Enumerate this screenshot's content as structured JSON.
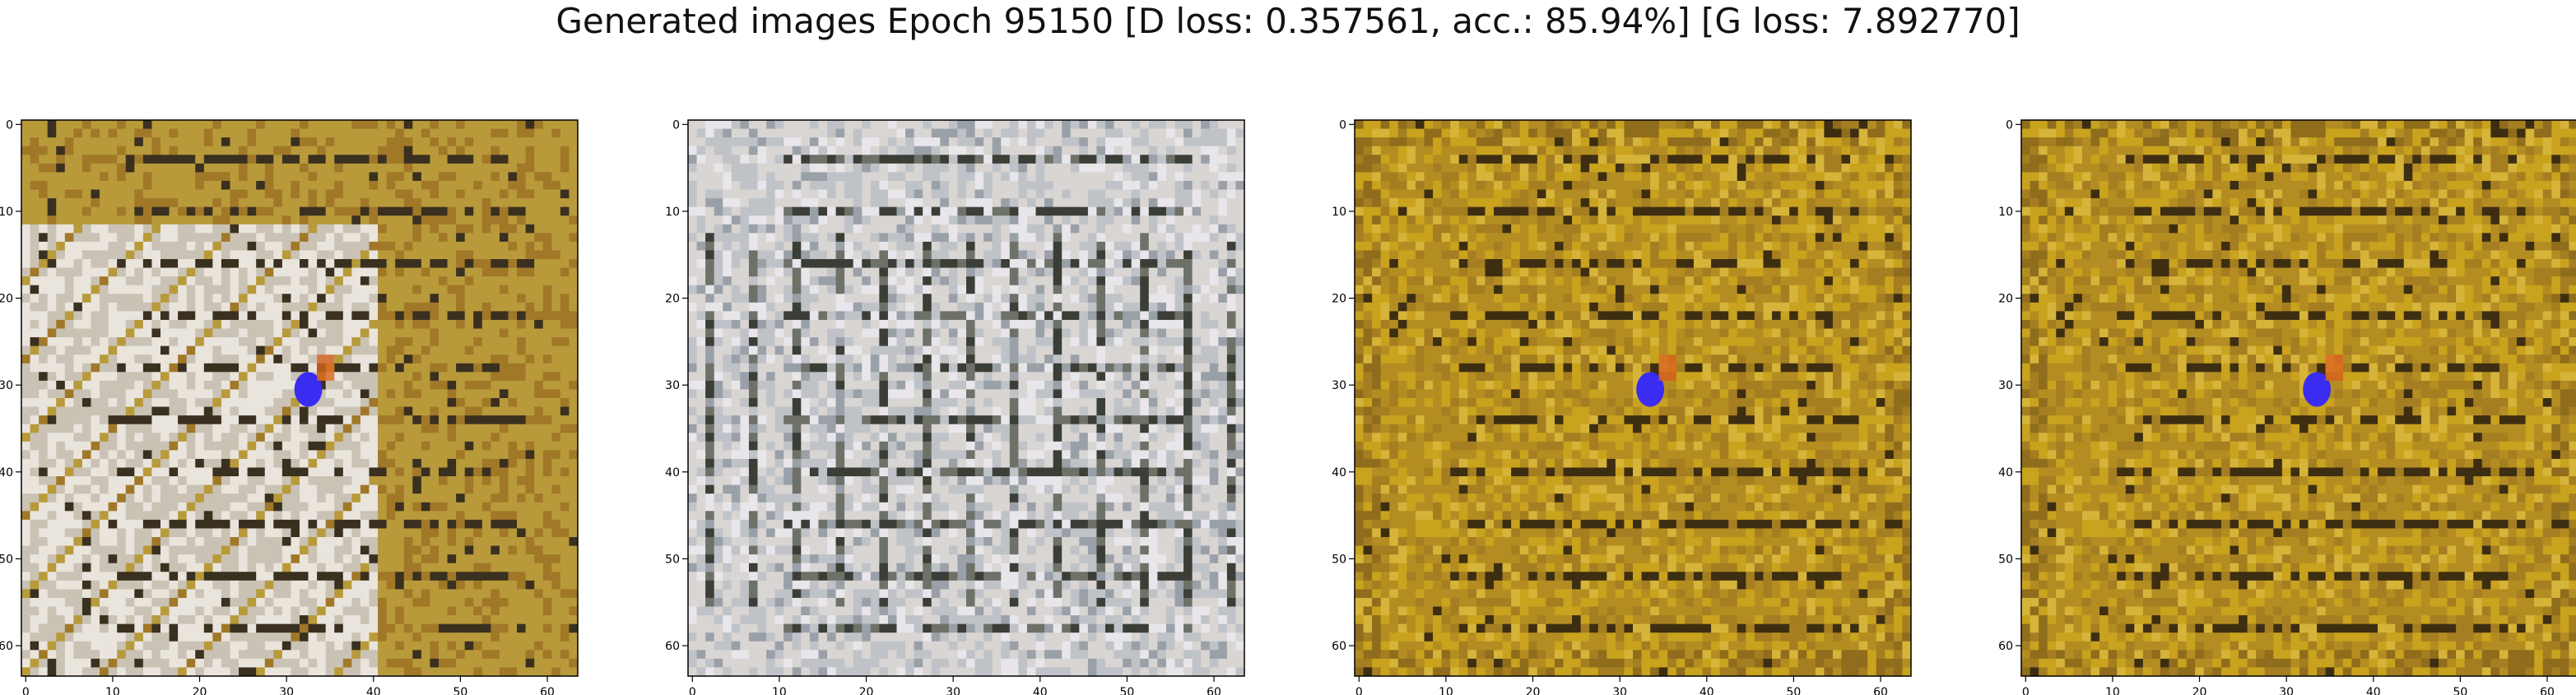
{
  "figure": {
    "title": "Generated images Epoch 95150 [D loss: 0.357561, acc.: 85.94%] [G loss: 7.892770]"
  },
  "axes_ticks": [
    0,
    10,
    20,
    30,
    40,
    50,
    60
  ],
  "image_grid_size": 64,
  "panels": [
    {
      "name": "sample-1",
      "palette": [
        "#b89a3a",
        "#c9c2b5",
        "#7a6a2a",
        "#e9e4dc",
        "#3a3020",
        "#a07828"
      ],
      "style": "mixed-grey-gold"
    },
    {
      "name": "sample-2",
      "palette": [
        "#d9d5d3",
        "#bfc3c8",
        "#9aa0a8",
        "#3b3e36",
        "#e8e6ea",
        "#6d7168"
      ],
      "style": "grey-grid"
    },
    {
      "name": "sample-3",
      "palette": [
        "#b48d22",
        "#c9a21e",
        "#8f6d1c",
        "#d6b43a",
        "#3d2e12",
        "#a47e20"
      ],
      "style": "gold-grid"
    },
    {
      "name": "sample-4",
      "palette": [
        "#b48d22",
        "#c9a21e",
        "#8f6d1c",
        "#d6b43a",
        "#3d2e12",
        "#a47e20"
      ],
      "style": "gold-grid"
    }
  ],
  "colors": {
    "accent_blob": "#3a2cf0",
    "accent_orange": "#d8641e",
    "axis": "#000000"
  }
}
